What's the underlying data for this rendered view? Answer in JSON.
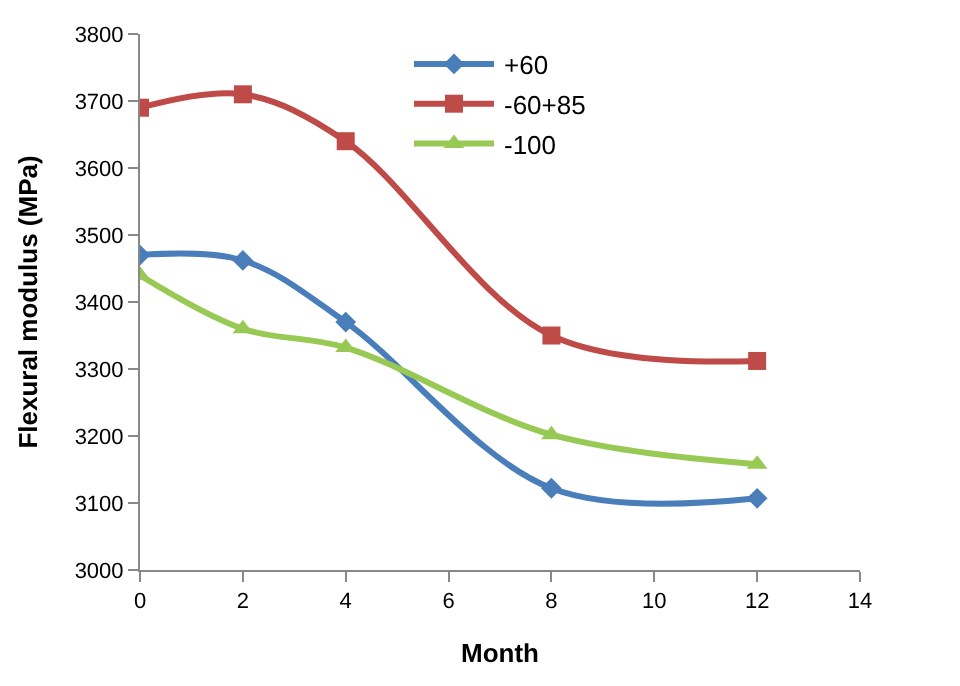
{
  "chart_data": {
    "type": "line",
    "xlabel": "Month",
    "ylabel": "Flexural modulus (MPa)",
    "x": [
      0,
      2,
      4,
      8,
      12
    ],
    "series": [
      {
        "name": "+60",
        "color": "#4a7ebb",
        "marker": "diamond",
        "values": [
          3470,
          3462,
          3370,
          3122,
          3107
        ]
      },
      {
        "name": "-60+85",
        "color": "#be4b48",
        "marker": "square",
        "values": [
          3690,
          3710,
          3640,
          3350,
          3312
        ]
      },
      {
        "name": "-100",
        "color": "#98c954",
        "marker": "triangle",
        "values": [
          3440,
          3360,
          3332,
          3202,
          3158
        ]
      }
    ],
    "xlim": [
      0,
      14
    ],
    "xticks": [
      0,
      2,
      4,
      6,
      8,
      10,
      12,
      14
    ],
    "ylim": [
      3000,
      3800
    ],
    "yticks": [
      3000,
      3100,
      3200,
      3300,
      3400,
      3500,
      3600,
      3700,
      3800
    ],
    "legend": "top"
  }
}
